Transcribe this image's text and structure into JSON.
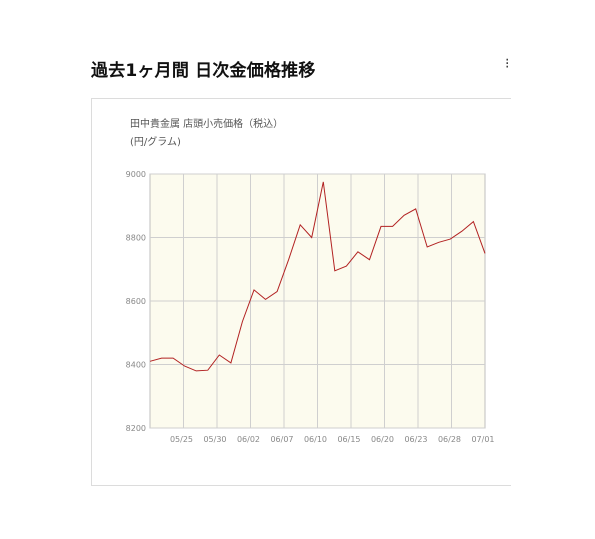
{
  "header": {
    "title": "過去1ヶ月間 日次金価格推移",
    "edge_glyph": "⁝"
  },
  "chart_data": {
    "type": "line",
    "title": "田中貴金属 店頭小売価格（税込）",
    "ylabel": "(円/グラム)",
    "xlabel": "",
    "ylim": [
      8200,
      9000
    ],
    "y_ticks": [
      "9000",
      "8800",
      "8600",
      "8400",
      "8200"
    ],
    "x_tick_labels": [
      "05/25",
      "05/30",
      "06/02",
      "06/07",
      "06/10",
      "06/15",
      "06/20",
      "06/23",
      "06/28",
      "07/01"
    ],
    "grid": true,
    "plot_background": "#fcfbee",
    "series": [
      {
        "color": "#b22222",
        "values": [
          8410,
          8420,
          8420,
          8395,
          8380,
          8382,
          8430,
          8405,
          8535,
          8635,
          8605,
          8630,
          8730,
          8840,
          8800,
          8975,
          8695,
          8710,
          8755,
          8730,
          8835,
          8835,
          8870,
          8890,
          8770,
          8785,
          8795,
          8820,
          8850,
          8750
        ]
      }
    ]
  }
}
